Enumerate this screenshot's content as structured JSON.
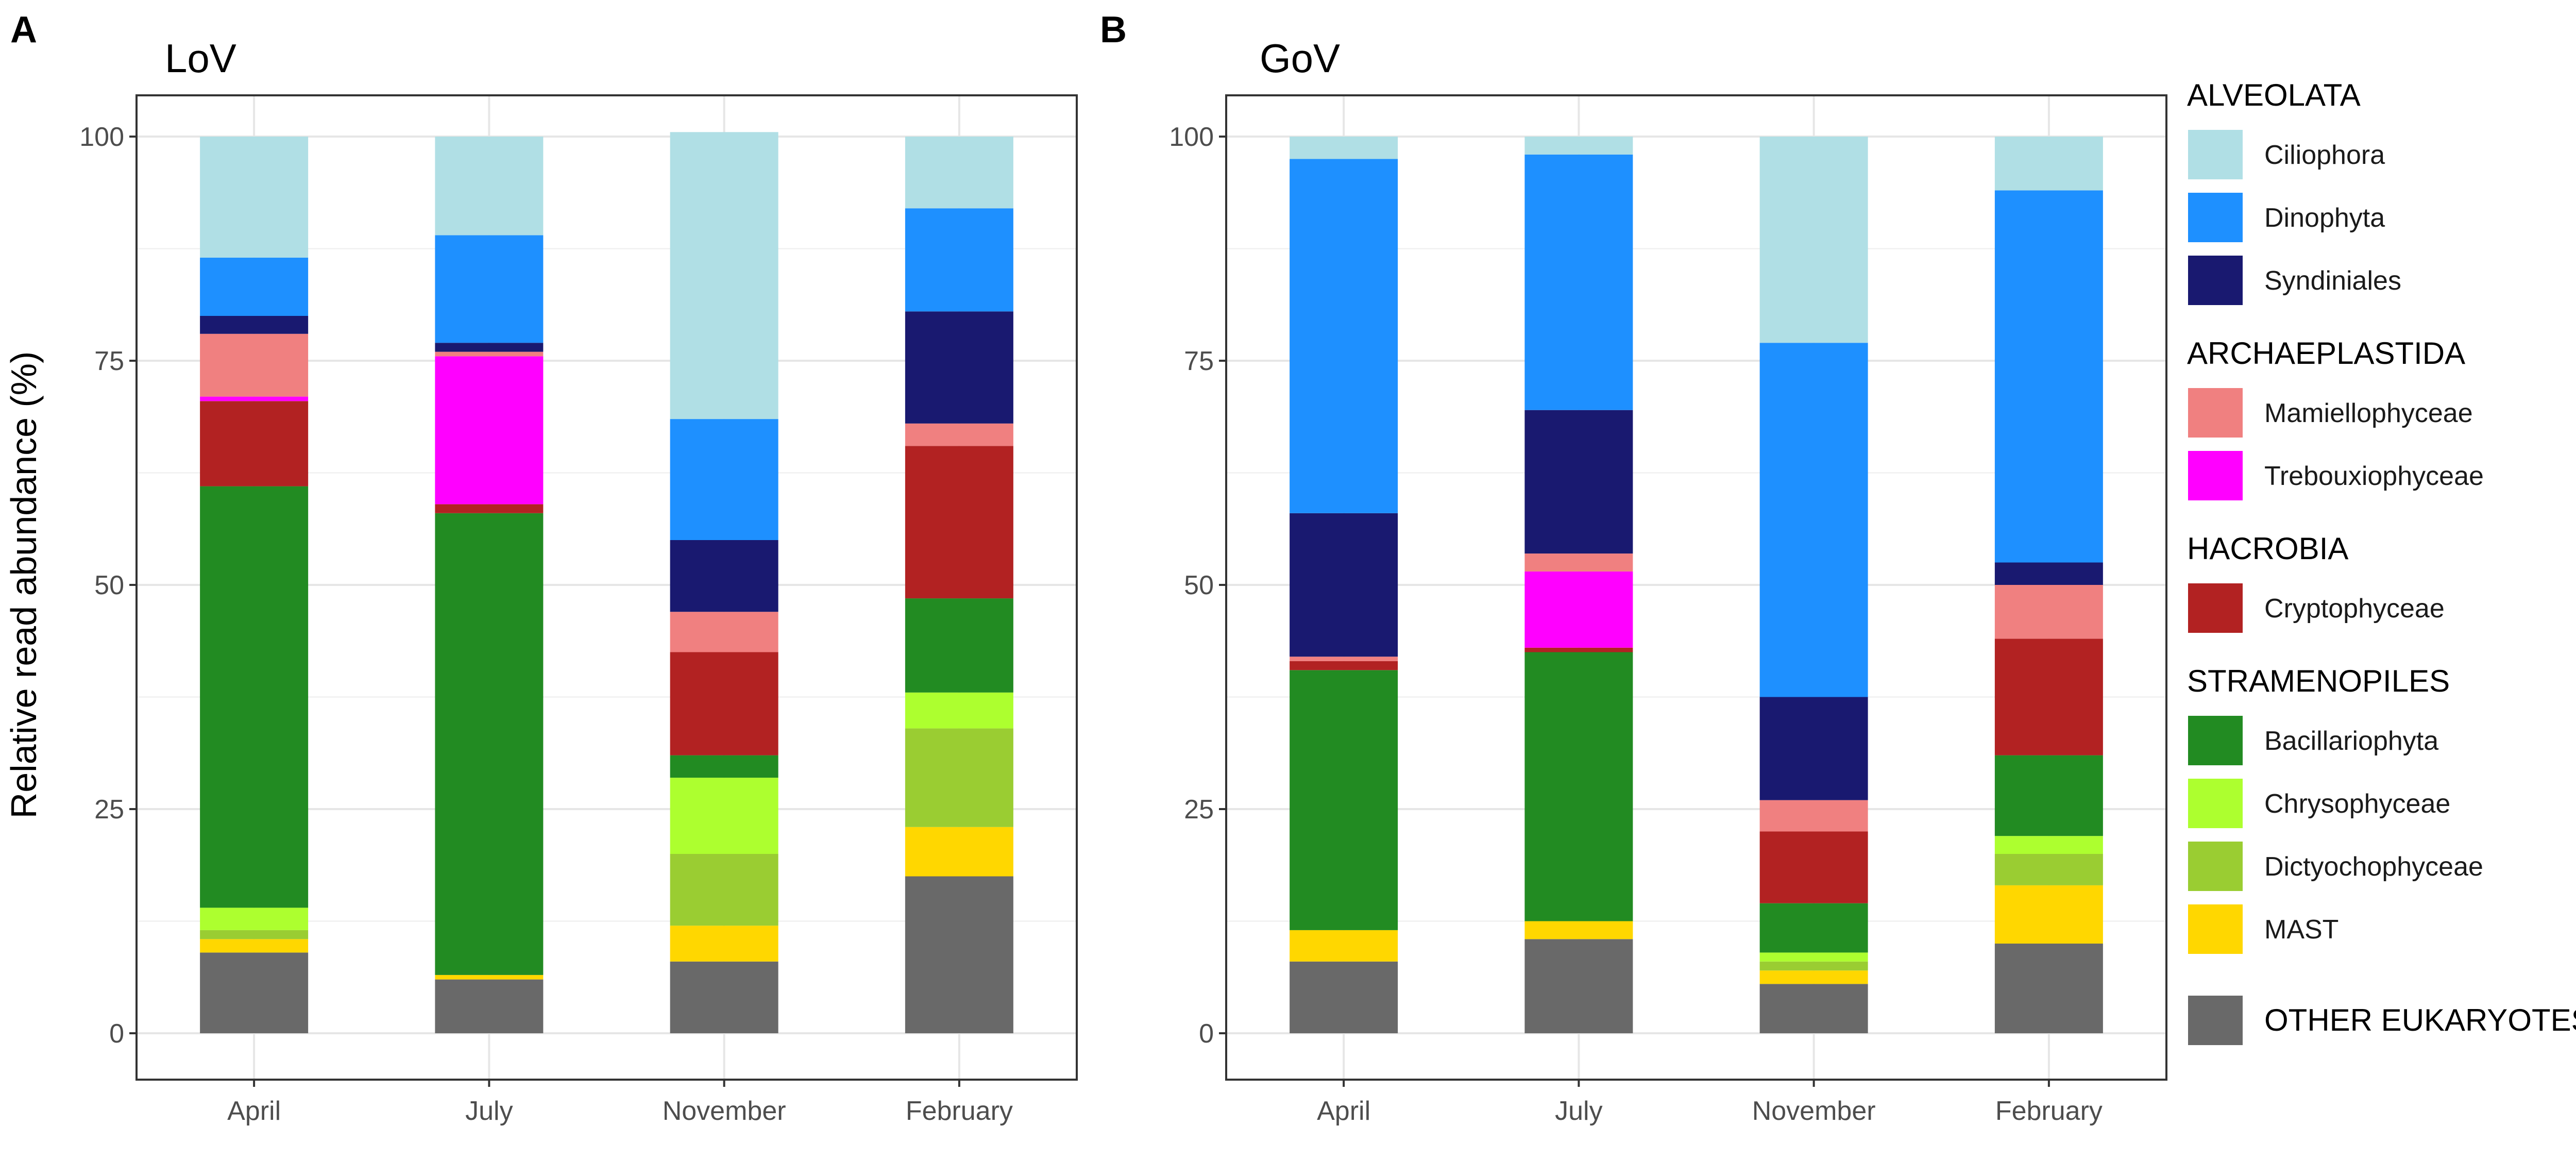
{
  "chart_data": [
    {
      "panel": "A",
      "title": "LoV",
      "type": "bar",
      "stacked": true,
      "ylabel": "Relative read abundance (%)",
      "ylim": [
        0,
        100
      ],
      "yticks": [
        0,
        25,
        50,
        75,
        100
      ],
      "grid": true,
      "categories": [
        "April",
        "July",
        "November",
        "February"
      ],
      "series": [
        {
          "name": "OTHER EUKARYOTES",
          "values": [
            9,
            6,
            8,
            17.5
          ]
        },
        {
          "name": "MAST",
          "values": [
            1.5,
            0.5,
            4,
            5.5
          ]
        },
        {
          "name": "Dictyochophyceae",
          "values": [
            1,
            0,
            8,
            11
          ]
        },
        {
          "name": "Chrysophyceae",
          "values": [
            2.5,
            0,
            8.5,
            4
          ]
        },
        {
          "name": "Bacillariophyta",
          "values": [
            47,
            51.5,
            2.5,
            10.5
          ]
        },
        {
          "name": "Cryptophyceae",
          "values": [
            9.5,
            1,
            11.5,
            17
          ]
        },
        {
          "name": "Trebouxiophyceae",
          "values": [
            0.5,
            16.5,
            0,
            0
          ]
        },
        {
          "name": "Mamiellophyceae",
          "values": [
            7,
            0.5,
            4.5,
            2.5
          ]
        },
        {
          "name": "Syndiniales",
          "values": [
            2,
            1,
            8,
            12.5
          ]
        },
        {
          "name": "Dinophyta",
          "values": [
            6.5,
            12,
            13.5,
            11.5
          ]
        },
        {
          "name": "Ciliophora",
          "values": [
            13.5,
            11,
            32,
            8
          ]
        }
      ]
    },
    {
      "panel": "B",
      "title": "GoV",
      "type": "bar",
      "stacked": true,
      "ylabel": "",
      "ylim": [
        0,
        100
      ],
      "yticks": [
        0,
        25,
        50,
        75,
        100
      ],
      "grid": true,
      "categories": [
        "April",
        "July",
        "November",
        "February"
      ],
      "series": [
        {
          "name": "OTHER EUKARYOTES",
          "values": [
            8,
            10.5,
            5.5,
            10
          ]
        },
        {
          "name": "MAST",
          "values": [
            3.5,
            2,
            1.5,
            6.5
          ]
        },
        {
          "name": "Dictyochophyceae",
          "values": [
            0,
            0,
            1,
            3.5
          ]
        },
        {
          "name": "Chrysophyceae",
          "values": [
            0,
            0,
            1,
            2
          ]
        },
        {
          "name": "Bacillariophyta",
          "values": [
            29,
            30,
            5.5,
            9
          ]
        },
        {
          "name": "Cryptophyceae",
          "values": [
            1,
            0.5,
            8,
            13
          ]
        },
        {
          "name": "Trebouxiophyceae",
          "values": [
            0,
            8.5,
            0,
            0
          ]
        },
        {
          "name": "Mamiellophyceae",
          "values": [
            0.5,
            2,
            3.5,
            6
          ]
        },
        {
          "name": "Syndiniales",
          "values": [
            16,
            16,
            11.5,
            2.5
          ]
        },
        {
          "name": "Dinophyta",
          "values": [
            39.5,
            28.5,
            39.5,
            41.5
          ]
        },
        {
          "name": "Ciliophora",
          "values": [
            2.5,
            2,
            23,
            6
          ]
        }
      ]
    }
  ],
  "colors": {
    "Ciliophora": "#b0dfe5",
    "Dinophyta": "#1e90ff",
    "Syndiniales": "#191970",
    "Mamiellophyceae": "#f08080",
    "Trebouxiophyceae": "#ff00ff",
    "Cryptophyceae": "#b22222",
    "Bacillariophyta": "#228b22",
    "Chrysophyceae": "#adff2f",
    "Dictyochophyceae": "#9acd32",
    "MAST": "#ffd700",
    "OTHER EUKARYOTES": "#696969"
  },
  "legend": {
    "groups": [
      {
        "name": "ALVEOLATA",
        "items": [
          "Ciliophora",
          "Dinophyta",
          "Syndiniales"
        ]
      },
      {
        "name": "ARCHAEPLASTIDA",
        "items": [
          "Mamiellophyceae",
          "Trebouxiophyceae"
        ]
      },
      {
        "name": "HACROBIA",
        "items": [
          "Cryptophyceae"
        ]
      },
      {
        "name": "STRAMENOPILES",
        "items": [
          "Bacillariophyta",
          "Chrysophyceae",
          "Dictyochophyceae",
          "MAST"
        ]
      }
    ],
    "other": "OTHER EUKARYOTES"
  }
}
